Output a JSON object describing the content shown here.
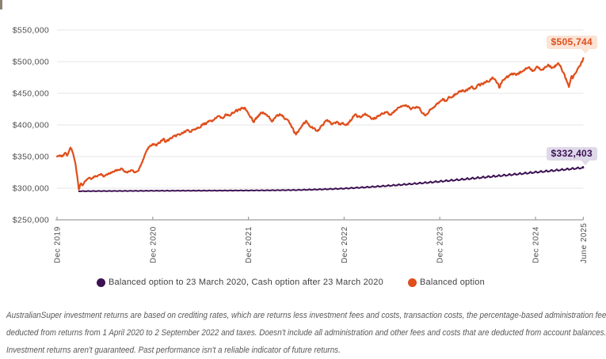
{
  "page": {
    "background": "#ffffff"
  },
  "chart_data": {
    "type": "line",
    "title": "",
    "y_axis": {
      "tick_labels": [
        "$250,000",
        "$300,000",
        "$350,000",
        "$400,000",
        "$450,000",
        "$500,000",
        "$550,000"
      ],
      "tick_values": [
        250000,
        300000,
        350000,
        400000,
        450000,
        500000,
        550000
      ],
      "min": 250000,
      "max": 550000,
      "grid": true
    },
    "x_axis": {
      "tick_labels": [
        "Dec 2019",
        "Dec 2020",
        "Dec 2021",
        "Dec 2022",
        "Dec 2023",
        "Dec 2024",
        "June 2025"
      ],
      "tick_month_index": [
        0,
        12,
        24,
        36,
        48,
        60,
        66
      ]
    },
    "series": [
      {
        "name": "Balanced option to 23 March 2020, Cash option after 23 March 2020",
        "color": "#3d1153",
        "end_label": "$332,403",
        "end_value": 332403,
        "points_month_value": [
          [
            2.75,
            295300
          ],
          [
            6,
            295500
          ],
          [
            12,
            295900
          ],
          [
            18,
            296100
          ],
          [
            24,
            296400
          ],
          [
            27,
            296700
          ],
          [
            30,
            297100
          ],
          [
            33,
            298100
          ],
          [
            36,
            299500
          ],
          [
            39,
            301700
          ],
          [
            42,
            304300
          ],
          [
            45,
            307300
          ],
          [
            48,
            310600
          ],
          [
            51,
            314100
          ],
          [
            54,
            317800
          ],
          [
            57,
            321400
          ],
          [
            60,
            325200
          ],
          [
            63,
            328700
          ],
          [
            66,
            332403
          ]
        ]
      },
      {
        "name": "Balanced option",
        "color": "#e04e1b",
        "end_label": "$505,744",
        "end_value": 505744,
        "points_month_value": [
          [
            0,
            350000
          ],
          [
            0.35,
            352500
          ],
          [
            0.7,
            350500
          ],
          [
            1.0,
            355500
          ],
          [
            1.25,
            352000
          ],
          [
            1.5,
            358000
          ],
          [
            1.65,
            364000
          ],
          [
            1.85,
            361000
          ],
          [
            2.05,
            352000
          ],
          [
            2.3,
            341000
          ],
          [
            2.5,
            322000
          ],
          [
            2.65,
            306000
          ],
          [
            2.75,
            295800
          ],
          [
            2.9,
            306000
          ],
          [
            3.05,
            308000
          ],
          [
            3.2,
            303500
          ],
          [
            3.45,
            310000
          ],
          [
            3.7,
            313500
          ],
          [
            4.0,
            316500
          ],
          [
            4.3,
            314000
          ],
          [
            4.7,
            318000
          ],
          [
            5.1,
            320000
          ],
          [
            5.5,
            322000
          ],
          [
            5.8,
            318500
          ],
          [
            6.2,
            321000
          ],
          [
            6.6,
            323500
          ],
          [
            7.0,
            325500
          ],
          [
            7.4,
            327500
          ],
          [
            7.8,
            330000
          ],
          [
            8.1,
            331000
          ],
          [
            8.45,
            327500
          ],
          [
            8.8,
            325500
          ],
          [
            9.2,
            328500
          ],
          [
            9.6,
            326000
          ],
          [
            9.9,
            324500
          ],
          [
            10.2,
            329000
          ],
          [
            10.45,
            335000
          ],
          [
            10.7,
            341500
          ],
          [
            11.0,
            352000
          ],
          [
            11.3,
            362000
          ],
          [
            11.6,
            366000
          ],
          [
            11.9,
            368500
          ],
          [
            12.2,
            370000
          ],
          [
            12.5,
            368000
          ],
          [
            12.8,
            371000
          ],
          [
            13.1,
            375000
          ],
          [
            13.4,
            377500
          ],
          [
            13.55,
            372500
          ],
          [
            13.8,
            375000
          ],
          [
            14.1,
            377000
          ],
          [
            14.4,
            379500
          ],
          [
            14.7,
            381000
          ],
          [
            15.0,
            383000
          ],
          [
            15.3,
            385000
          ],
          [
            15.7,
            387000
          ],
          [
            16.0,
            389000
          ],
          [
            16.4,
            391000
          ],
          [
            16.7,
            389500
          ],
          [
            17.0,
            392000
          ],
          [
            17.4,
            395000
          ],
          [
            17.7,
            396500
          ],
          [
            18.0,
            398500
          ],
          [
            18.3,
            400500
          ],
          [
            18.7,
            402500
          ],
          [
            19.0,
            404500
          ],
          [
            19.4,
            407000
          ],
          [
            19.7,
            409000
          ],
          [
            20.0,
            411000
          ],
          [
            20.4,
            413000
          ],
          [
            20.7,
            412000
          ],
          [
            21.0,
            414500
          ],
          [
            21.3,
            416500
          ],
          [
            21.5,
            414500
          ],
          [
            21.8,
            417000
          ],
          [
            22.1,
            419000
          ],
          [
            22.4,
            421500
          ],
          [
            22.7,
            423500
          ],
          [
            23.0,
            425000
          ],
          [
            23.3,
            426000
          ],
          [
            23.6,
            427500
          ],
          [
            23.8,
            424000
          ],
          [
            24.0,
            419000
          ],
          [
            24.25,
            413000
          ],
          [
            24.5,
            408500
          ],
          [
            24.7,
            406000
          ],
          [
            24.9,
            410000
          ],
          [
            25.2,
            414000
          ],
          [
            25.5,
            417000
          ],
          [
            25.8,
            419500
          ],
          [
            26.1,
            417000
          ],
          [
            26.4,
            413500
          ],
          [
            26.7,
            410000
          ],
          [
            27.0,
            407000
          ],
          [
            27.3,
            410500
          ],
          [
            27.6,
            414000
          ],
          [
            27.9,
            416500
          ],
          [
            28.2,
            414000
          ],
          [
            28.5,
            411000
          ],
          [
            28.8,
            407500
          ],
          [
            29.1,
            403000
          ],
          [
            29.35,
            398000
          ],
          [
            29.6,
            393000
          ],
          [
            29.8,
            387500
          ],
          [
            30.0,
            385000
          ],
          [
            30.2,
            390000
          ],
          [
            30.45,
            395000
          ],
          [
            30.7,
            399000
          ],
          [
            31.0,
            403500
          ],
          [
            31.2,
            406000
          ],
          [
            31.5,
            402000
          ],
          [
            31.8,
            398000
          ],
          [
            32.1,
            395000
          ],
          [
            32.4,
            392500
          ],
          [
            32.7,
            391500
          ],
          [
            33.0,
            395000
          ],
          [
            33.3,
            400000
          ],
          [
            33.6,
            404000
          ],
          [
            33.9,
            406000
          ],
          [
            34.2,
            404000
          ],
          [
            34.5,
            402500
          ],
          [
            34.8,
            404500
          ],
          [
            35.1,
            403000
          ],
          [
            35.4,
            401500
          ],
          [
            35.7,
            403000
          ],
          [
            36.0,
            402000
          ],
          [
            36.25,
            399500
          ],
          [
            36.5,
            402000
          ],
          [
            36.8,
            407000
          ],
          [
            37.1,
            412000
          ],
          [
            37.4,
            416000
          ],
          [
            37.7,
            413500
          ],
          [
            38.0,
            411500
          ],
          [
            38.3,
            414000
          ],
          [
            38.6,
            416500
          ],
          [
            38.9,
            414500
          ],
          [
            39.2,
            412000
          ],
          [
            39.5,
            410500
          ],
          [
            39.9,
            410000
          ],
          [
            40.2,
            413000
          ],
          [
            40.5,
            416000
          ],
          [
            40.8,
            418500
          ],
          [
            41.1,
            420500
          ],
          [
            41.4,
            418500
          ],
          [
            41.7,
            416500
          ],
          [
            42.0,
            418500
          ],
          [
            42.3,
            421000
          ],
          [
            42.6,
            424000
          ],
          [
            42.9,
            426500
          ],
          [
            43.2,
            428000
          ],
          [
            43.5,
            430000
          ],
          [
            43.9,
            431000
          ],
          [
            44.2,
            428000
          ],
          [
            44.5,
            424500
          ],
          [
            44.8,
            427000
          ],
          [
            45.1,
            429000
          ],
          [
            45.4,
            425500
          ],
          [
            45.7,
            421000
          ],
          [
            46.0,
            416500
          ],
          [
            46.2,
            414000
          ],
          [
            46.5,
            418000
          ],
          [
            46.8,
            422500
          ],
          [
            47.1,
            426500
          ],
          [
            47.4,
            430000
          ],
          [
            47.8,
            435000
          ],
          [
            48.1,
            438000
          ],
          [
            48.4,
            440500
          ],
          [
            48.7,
            438500
          ],
          [
            49.0,
            441000
          ],
          [
            49.3,
            444000
          ],
          [
            49.6,
            446500
          ],
          [
            49.9,
            448500
          ],
          [
            50.2,
            451000
          ],
          [
            50.5,
            453500
          ],
          [
            50.8,
            454500
          ],
          [
            51.1,
            452500
          ],
          [
            51.4,
            455000
          ],
          [
            51.7,
            457500
          ],
          [
            52.0,
            459000
          ],
          [
            52.3,
            457000
          ],
          [
            52.6,
            460000
          ],
          [
            52.9,
            462500
          ],
          [
            53.2,
            464500
          ],
          [
            53.5,
            466000
          ],
          [
            53.8,
            468000
          ],
          [
            54.1,
            470000
          ],
          [
            54.4,
            472000
          ],
          [
            54.7,
            474500
          ],
          [
            55.0,
            472000
          ],
          [
            55.3,
            464000
          ],
          [
            55.45,
            458500
          ],
          [
            55.7,
            466000
          ],
          [
            55.9,
            470500
          ],
          [
            56.2,
            473000
          ],
          [
            56.5,
            475500
          ],
          [
            56.8,
            477500
          ],
          [
            57.1,
            480000
          ],
          [
            57.35,
            481500
          ],
          [
            57.6,
            479500
          ],
          [
            57.9,
            482000
          ],
          [
            58.2,
            484500
          ],
          [
            58.5,
            486500
          ],
          [
            58.8,
            489000
          ],
          [
            59.1,
            491000
          ],
          [
            59.35,
            488000
          ],
          [
            59.6,
            485500
          ],
          [
            59.9,
            489000
          ],
          [
            60.2,
            492000
          ],
          [
            60.5,
            489500
          ],
          [
            60.75,
            486500
          ],
          [
            61.0,
            489500
          ],
          [
            61.3,
            492500
          ],
          [
            61.6,
            494500
          ],
          [
            61.9,
            492000
          ],
          [
            62.15,
            489500
          ],
          [
            62.4,
            493000
          ],
          [
            62.7,
            495500
          ],
          [
            62.9,
            497000
          ],
          [
            63.1,
            493000
          ],
          [
            63.3,
            488000
          ],
          [
            63.5,
            483000
          ],
          [
            63.7,
            477000
          ],
          [
            63.9,
            470000
          ],
          [
            64.05,
            464000
          ],
          [
            64.2,
            460500
          ],
          [
            64.35,
            469000
          ],
          [
            64.5,
            476500
          ],
          [
            64.65,
            474000
          ],
          [
            64.8,
            477500
          ],
          [
            64.95,
            481000
          ],
          [
            65.1,
            484000
          ],
          [
            65.3,
            487500
          ],
          [
            65.5,
            491000
          ],
          [
            65.7,
            495000
          ],
          [
            65.85,
            499000
          ],
          [
            66.0,
            505744
          ]
        ]
      }
    ]
  },
  "annotations": {
    "balanced": {
      "label": "$505,744",
      "text_color": "#e04e1b",
      "bg": "#fbe3d5"
    },
    "cash": {
      "label": "$332,403",
      "text_color": "#3d1153",
      "bg": "#ded8e9"
    }
  },
  "legend": {
    "items": [
      {
        "label": "Balanced option to 23 March 2020, Cash option after 23 March 2020",
        "color": "#3d1153"
      },
      {
        "label": "Balanced option",
        "color": "#e04e1b"
      }
    ]
  },
  "footer": {
    "lines": [
      "AustralianSuper investment returns are based on crediting rates, which are returns less investment fees and costs, transaction costs, the percentage-based administration fee",
      "deducted from returns from 1 April 2020 to 2 September 2022 and taxes. Doesn't include all administration and other fees and costs that are deducted from account balances.",
      "Investment returns aren't guaranteed. Past performance isn't a reliable indicator of future returns."
    ]
  }
}
